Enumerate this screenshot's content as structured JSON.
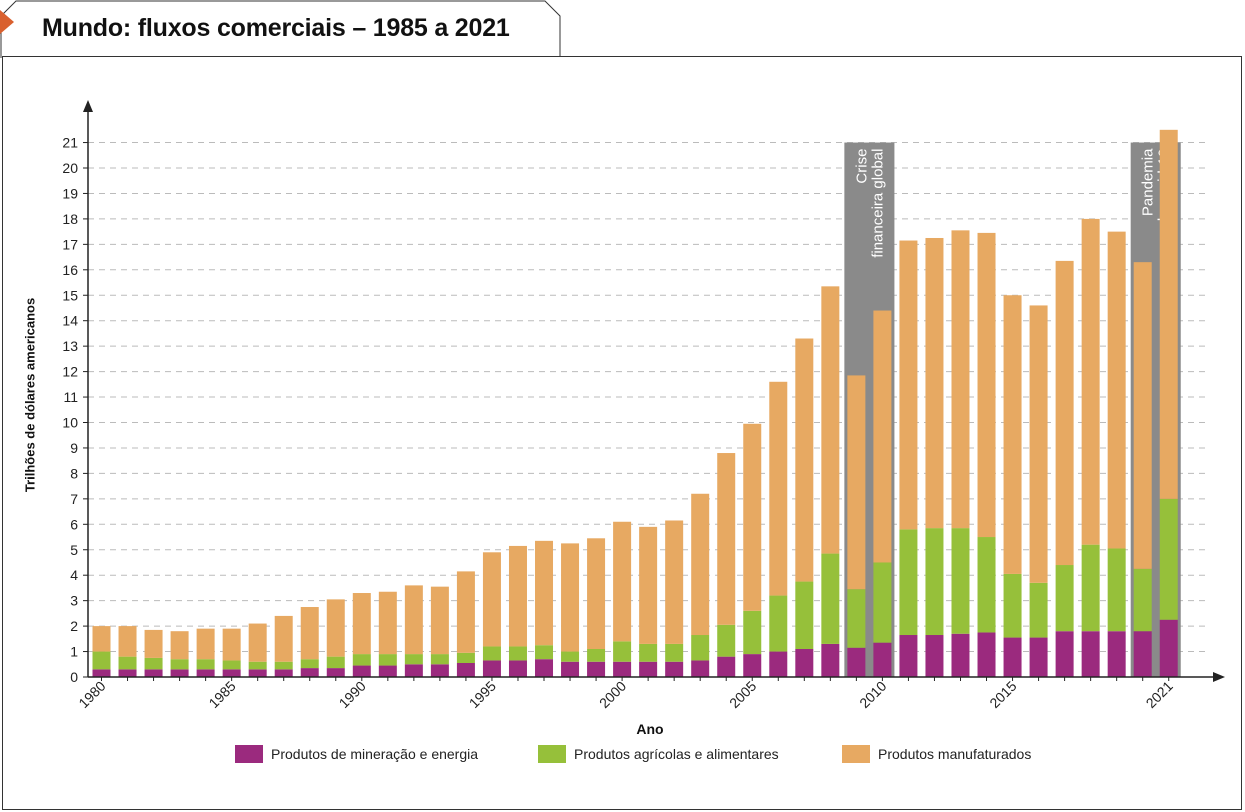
{
  "title": "Mundo: fluxos comerciais – 1985 a 2021",
  "colors": {
    "mining": "#9b2a7e",
    "agri": "#96c03a",
    "manuf": "#e7a962",
    "crisis_band": "#8a8a8a",
    "grid": "#bbbbbb",
    "tab_accent": "#d9602e"
  },
  "chart_data": {
    "type": "bar",
    "stacked": true,
    "xlabel": "Ano",
    "ylabel": "Trilhões de dólares americanos",
    "ylim": [
      0,
      21
    ],
    "yticks": [
      0,
      1,
      2,
      3,
      4,
      5,
      6,
      7,
      8,
      9,
      10,
      11,
      12,
      13,
      14,
      15,
      16,
      17,
      18,
      19,
      20,
      21
    ],
    "x_tick_labels": [
      "1980",
      "1985",
      "1990",
      "1995",
      "2000",
      "2005",
      "2010",
      "2015",
      "2021"
    ],
    "grid": true,
    "categories": [
      1980,
      1981,
      1982,
      1983,
      1984,
      1985,
      1986,
      1987,
      1988,
      1989,
      1990,
      1991,
      1992,
      1993,
      1994,
      1995,
      1996,
      1997,
      1998,
      1999,
      2000,
      2001,
      2002,
      2003,
      2004,
      2005,
      2006,
      2007,
      2008,
      2009,
      2010,
      2011,
      2012,
      2013,
      2014,
      2015,
      2016,
      2017,
      2018,
      2019,
      2020,
      2021
    ],
    "series": [
      {
        "name": "Produtos de mineração e energia",
        "values": [
          0.3,
          0.3,
          0.3,
          0.3,
          0.3,
          0.3,
          0.3,
          0.3,
          0.35,
          0.35,
          0.45,
          0.45,
          0.5,
          0.5,
          0.55,
          0.65,
          0.65,
          0.7,
          0.6,
          0.6,
          0.6,
          0.6,
          0.6,
          0.65,
          0.8,
          0.9,
          1.0,
          1.1,
          1.3,
          1.15,
          1.35,
          1.65,
          1.65,
          1.7,
          1.75,
          1.55,
          1.55,
          1.8,
          1.8,
          1.8,
          1.8,
          2.25
        ]
      },
      {
        "name": "Produtos agrícolas e alimentares",
        "values": [
          0.7,
          0.5,
          0.45,
          0.4,
          0.4,
          0.35,
          0.3,
          0.3,
          0.35,
          0.45,
          0.45,
          0.45,
          0.4,
          0.4,
          0.4,
          0.55,
          0.55,
          0.55,
          0.4,
          0.5,
          0.8,
          0.7,
          0.7,
          1.0,
          1.25,
          1.7,
          2.2,
          2.65,
          3.55,
          2.3,
          3.15,
          4.15,
          4.2,
          4.15,
          3.75,
          2.5,
          2.15,
          2.6,
          3.4,
          3.25,
          2.45,
          4.75
        ]
      },
      {
        "name": "Produtos manufaturados",
        "values": [
          1.0,
          1.2,
          1.1,
          1.1,
          1.2,
          1.25,
          1.5,
          1.8,
          2.05,
          2.25,
          2.4,
          2.45,
          2.7,
          2.65,
          3.2,
          3.7,
          3.95,
          4.1,
          4.25,
          4.35,
          4.7,
          4.6,
          4.85,
          5.55,
          6.75,
          7.35,
          8.4,
          9.55,
          10.5,
          8.4,
          9.9,
          11.35,
          11.4,
          11.7,
          11.95,
          10.95,
          10.9,
          11.95,
          12.8,
          12.45,
          12.05,
          14.5
        ]
      }
    ],
    "annotations": [
      {
        "label_lines": [
          "Crise",
          "financeira global"
        ],
        "from": 2009,
        "to": 2010
      },
      {
        "label_lines": [
          "Pandemia",
          "de covid-19"
        ],
        "from": 2020,
        "to": 2021
      }
    ]
  }
}
